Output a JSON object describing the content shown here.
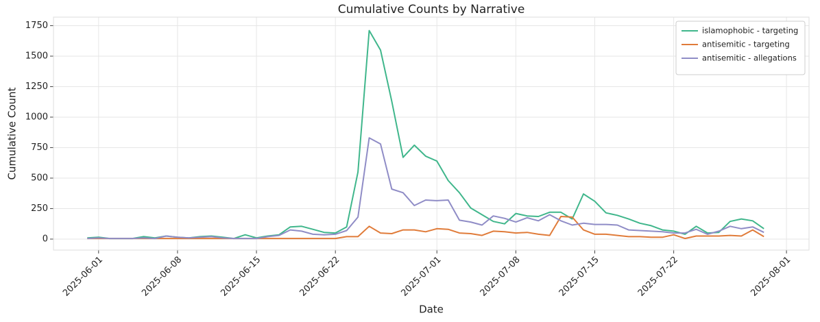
{
  "chart_data": {
    "type": "line",
    "title": "Cumulative Counts by Narrative",
    "xlabel": "Date",
    "ylabel": "Cumulative Count",
    "x": [
      "2025-05-31",
      "2025-06-01",
      "2025-06-02",
      "2025-06-03",
      "2025-06-04",
      "2025-06-05",
      "2025-06-06",
      "2025-06-07",
      "2025-06-08",
      "2025-06-09",
      "2025-06-10",
      "2025-06-11",
      "2025-06-12",
      "2025-06-13",
      "2025-06-14",
      "2025-06-15",
      "2025-06-16",
      "2025-06-17",
      "2025-06-18",
      "2025-06-19",
      "2025-06-20",
      "2025-06-21",
      "2025-06-22",
      "2025-06-23",
      "2025-06-24",
      "2025-06-25",
      "2025-06-26",
      "2025-06-27",
      "2025-06-28",
      "2025-06-29",
      "2025-06-30",
      "2025-07-01",
      "2025-07-02",
      "2025-07-03",
      "2025-07-04",
      "2025-07-05",
      "2025-07-06",
      "2025-07-07",
      "2025-07-08",
      "2025-07-09",
      "2025-07-10",
      "2025-07-11",
      "2025-07-12",
      "2025-07-13",
      "2025-07-14",
      "2025-07-15",
      "2025-07-16",
      "2025-07-17",
      "2025-07-18",
      "2025-07-19",
      "2025-07-20",
      "2025-07-21",
      "2025-07-22",
      "2025-07-23",
      "2025-07-24",
      "2025-07-25",
      "2025-07-26",
      "2025-07-27",
      "2025-07-28",
      "2025-07-29",
      "2025-07-30"
    ],
    "series": [
      {
        "name": "islamophobic - targeting",
        "color": "#3fb68b",
        "values": [
          10,
          15,
          5,
          5,
          5,
          20,
          10,
          25,
          15,
          10,
          20,
          25,
          15,
          5,
          35,
          10,
          25,
          35,
          100,
          105,
          80,
          55,
          50,
          100,
          550,
          1710,
          1550,
          1130,
          670,
          770,
          680,
          640,
          480,
          380,
          255,
          200,
          145,
          125,
          210,
          190,
          185,
          220,
          220,
          165,
          370,
          310,
          215,
          195,
          165,
          130,
          110,
          75,
          65,
          40,
          105,
          50,
          55,
          145,
          165,
          150,
          85
        ]
      },
      {
        "name": "antisemitic - targeting",
        "color": "#e07b39",
        "values": [
          5,
          5,
          5,
          5,
          5,
          5,
          5,
          5,
          5,
          5,
          5,
          5,
          5,
          5,
          5,
          5,
          5,
          5,
          5,
          5,
          5,
          5,
          5,
          20,
          20,
          105,
          50,
          45,
          75,
          75,
          60,
          85,
          80,
          50,
          45,
          30,
          65,
          60,
          50,
          55,
          40,
          30,
          185,
          180,
          75,
          40,
          40,
          30,
          20,
          20,
          15,
          15,
          35,
          5,
          25,
          25,
          25,
          30,
          25,
          75,
          20
        ]
      },
      {
        "name": "antisemitic - allegations",
        "color": "#8f8cc6",
        "values": [
          5,
          10,
          5,
          5,
          5,
          10,
          5,
          25,
          15,
          10,
          15,
          20,
          10,
          5,
          5,
          5,
          20,
          30,
          75,
          65,
          40,
          35,
          40,
          70,
          180,
          830,
          780,
          410,
          380,
          275,
          320,
          315,
          320,
          155,
          140,
          115,
          190,
          170,
          140,
          175,
          150,
          200,
          150,
          115,
          130,
          120,
          120,
          115,
          75,
          70,
          65,
          60,
          50,
          50,
          80,
          40,
          65,
          105,
          85,
          100,
          55
        ]
      }
    ],
    "xlim": [
      "2025-05-28",
      "2025-08-03"
    ],
    "xticks": [
      "2025-06-01",
      "2025-06-08",
      "2025-06-15",
      "2025-06-22",
      "2025-07-01",
      "2025-07-08",
      "2025-07-15",
      "2025-07-22",
      "2025-08-01"
    ],
    "ylim": [
      -90,
      1820
    ],
    "yticks": [
      0,
      250,
      500,
      750,
      1000,
      1250,
      1500,
      1750
    ],
    "grid": true,
    "legend": "upper right"
  }
}
